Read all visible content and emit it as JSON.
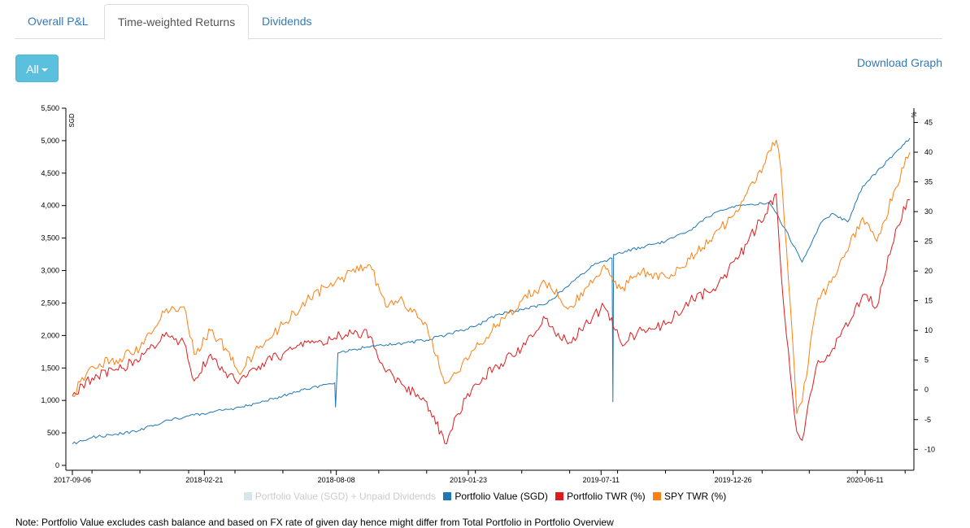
{
  "tabs": [
    {
      "label": "Overall P&L",
      "active": false
    },
    {
      "label": "Time-weighted Returns",
      "active": true
    },
    {
      "label": "Dividends",
      "active": false
    }
  ],
  "range_button": {
    "label": "All"
  },
  "download_label": "Download Graph",
  "note": "Note: Portfolio Value excludes cash balance and based on FX rate of given day hence might differ from Total Portfolio in Portfolio Overview",
  "chart_data": {
    "type": "line",
    "left_axis": {
      "label": "SGD",
      "ticks": [
        "0",
        "500",
        "1,000",
        "1,500",
        "2,000",
        "2,500",
        "3,000",
        "3,500",
        "4,000",
        "4,500",
        "5,000",
        "5,500"
      ],
      "range": [
        0,
        5500
      ]
    },
    "right_axis": {
      "label": "%",
      "ticks": [
        "-10",
        "-5",
        "0",
        "5",
        "10",
        "15",
        "20",
        "25",
        "30",
        "35",
        "40",
        "45"
      ],
      "range": [
        -12.7,
        47.4
      ]
    },
    "x_tick_labels": [
      "2017-09-06",
      "2018-02-21",
      "2018-08-08",
      "2019-01-23",
      "2019-07-11",
      "2019-12-26",
      "2020-06-11"
    ],
    "x_range": [
      "2017-09-06",
      "2020-08-07"
    ],
    "grid": false,
    "legend_position": "bottom",
    "series": [
      {
        "name": "Portfolio Value (SGD) + Unpaid Dividends",
        "color": "#d6e6ea",
        "axis": "left",
        "visible": false,
        "values": []
      },
      {
        "name": "Portfolio Value (SGD)",
        "color": "#1f77b4",
        "axis": "left",
        "points": [
          [
            "2017-09-06",
            330
          ],
          [
            "2017-10-01",
            430
          ],
          [
            "2017-11-01",
            480
          ],
          [
            "2017-12-01",
            540
          ],
          [
            "2018-01-01",
            680
          ],
          [
            "2018-02-01",
            760
          ],
          [
            "2018-03-01",
            820
          ],
          [
            "2018-04-01",
            880
          ],
          [
            "2018-05-01",
            960
          ],
          [
            "2018-06-01",
            1070
          ],
          [
            "2018-07-01",
            1170
          ],
          [
            "2018-08-06",
            1270
          ],
          [
            "2018-08-07",
            900
          ],
          [
            "2018-08-10",
            1730
          ],
          [
            "2018-09-01",
            1790
          ],
          [
            "2018-10-01",
            1850
          ],
          [
            "2018-11-01",
            1880
          ],
          [
            "2018-12-01",
            1930
          ],
          [
            "2019-01-01",
            2030
          ],
          [
            "2019-02-01",
            2140
          ],
          [
            "2019-03-01",
            2320
          ],
          [
            "2019-04-01",
            2400
          ],
          [
            "2019-05-01",
            2480
          ],
          [
            "2019-06-01",
            2780
          ],
          [
            "2019-07-01",
            3080
          ],
          [
            "2019-07-25",
            3190
          ],
          [
            "2019-07-26",
            980
          ],
          [
            "2019-07-27",
            3250
          ],
          [
            "2019-09-01",
            3360
          ],
          [
            "2019-10-01",
            3450
          ],
          [
            "2019-11-01",
            3620
          ],
          [
            "2019-12-01",
            3880
          ],
          [
            "2020-01-01",
            4000
          ],
          [
            "2020-02-10",
            4050
          ],
          [
            "2020-02-20",
            3870
          ],
          [
            "2020-03-23",
            3130
          ],
          [
            "2020-04-15",
            3720
          ],
          [
            "2020-05-01",
            3880
          ],
          [
            "2020-05-20",
            3750
          ],
          [
            "2020-06-08",
            4300
          ],
          [
            "2020-07-01",
            4580
          ],
          [
            "2020-08-07",
            5040
          ]
        ]
      },
      {
        "name": "Portfolio TWR (%)",
        "color": "#e31a1c",
        "axis": "right",
        "points": [
          [
            "2017-09-06",
            -1
          ],
          [
            "2017-10-01",
            2
          ],
          [
            "2017-11-01",
            3.5
          ],
          [
            "2017-12-01",
            5
          ],
          [
            "2018-01-01",
            9
          ],
          [
            "2018-01-26",
            8
          ],
          [
            "2018-02-08",
            1.5
          ],
          [
            "2018-03-01",
            6
          ],
          [
            "2018-03-20",
            3
          ],
          [
            "2018-04-05",
            1
          ],
          [
            "2018-05-01",
            4
          ],
          [
            "2018-06-01",
            6
          ],
          [
            "2018-07-01",
            8
          ],
          [
            "2018-08-01",
            8.5
          ],
          [
            "2018-09-01",
            10
          ],
          [
            "2018-09-20",
            9
          ],
          [
            "2018-10-10",
            3
          ],
          [
            "2018-10-30",
            1
          ],
          [
            "2018-12-01",
            -2
          ],
          [
            "2018-12-24",
            -9
          ],
          [
            "2019-01-10",
            -4
          ],
          [
            "2019-02-01",
            1
          ],
          [
            "2019-03-01",
            4
          ],
          [
            "2019-04-01",
            7
          ],
          [
            "2019-05-01",
            12
          ],
          [
            "2019-05-15",
            9
          ],
          [
            "2019-06-01",
            8
          ],
          [
            "2019-06-20",
            11
          ],
          [
            "2019-07-15",
            14
          ],
          [
            "2019-08-05",
            8
          ],
          [
            "2019-09-01",
            10
          ],
          [
            "2019-10-01",
            11
          ],
          [
            "2019-11-01",
            15
          ],
          [
            "2019-12-01",
            17
          ],
          [
            "2020-01-01",
            22
          ],
          [
            "2020-02-19",
            33
          ],
          [
            "2020-02-25",
            20
          ],
          [
            "2020-03-10",
            0
          ],
          [
            "2020-03-16",
            -7
          ],
          [
            "2020-03-23",
            -8.5
          ],
          [
            "2020-04-10",
            4
          ],
          [
            "2020-05-01",
            7
          ],
          [
            "2020-06-08",
            16
          ],
          [
            "2020-06-26",
            14
          ],
          [
            "2020-07-20",
            27
          ],
          [
            "2020-08-04",
            32
          ],
          [
            "2020-08-07",
            32
          ]
        ]
      },
      {
        "name": "SPY TWR (%)",
        "color": "#ff7f0e",
        "axis": "right",
        "points": [
          [
            "2017-09-06",
            -1
          ],
          [
            "2017-10-01",
            4
          ],
          [
            "2017-11-01",
            5
          ],
          [
            "2017-12-01",
            7
          ],
          [
            "2018-01-01",
            13
          ],
          [
            "2018-01-26",
            14
          ],
          [
            "2018-02-08",
            6
          ],
          [
            "2018-03-01",
            10
          ],
          [
            "2018-03-20",
            7
          ],
          [
            "2018-04-05",
            3
          ],
          [
            "2018-05-01",
            7
          ],
          [
            "2018-06-01",
            11
          ],
          [
            "2018-07-01",
            15
          ],
          [
            "2018-08-01",
            18
          ],
          [
            "2018-09-20",
            21
          ],
          [
            "2018-10-10",
            14
          ],
          [
            "2018-11-01",
            15
          ],
          [
            "2018-12-01",
            11
          ],
          [
            "2018-12-24",
            1
          ],
          [
            "2019-01-10",
            3
          ],
          [
            "2019-02-01",
            7
          ],
          [
            "2019-03-01",
            11
          ],
          [
            "2019-04-01",
            15
          ],
          [
            "2019-05-01",
            18
          ],
          [
            "2019-06-01",
            14
          ],
          [
            "2019-06-20",
            17
          ],
          [
            "2019-07-15",
            21
          ],
          [
            "2019-08-05",
            17
          ],
          [
            "2019-09-01",
            20
          ],
          [
            "2019-10-01",
            19
          ],
          [
            "2019-11-01",
            22
          ],
          [
            "2019-12-01",
            26
          ],
          [
            "2020-01-01",
            30
          ],
          [
            "2020-02-19",
            42
          ],
          [
            "2020-02-25",
            37
          ],
          [
            "2020-03-10",
            10
          ],
          [
            "2020-03-16",
            -4
          ],
          [
            "2020-03-23",
            -2
          ],
          [
            "2020-04-10",
            14
          ],
          [
            "2020-05-01",
            19
          ],
          [
            "2020-06-08",
            29
          ],
          [
            "2020-06-26",
            25
          ],
          [
            "2020-07-20",
            34
          ],
          [
            "2020-08-07",
            40
          ]
        ]
      }
    ]
  }
}
